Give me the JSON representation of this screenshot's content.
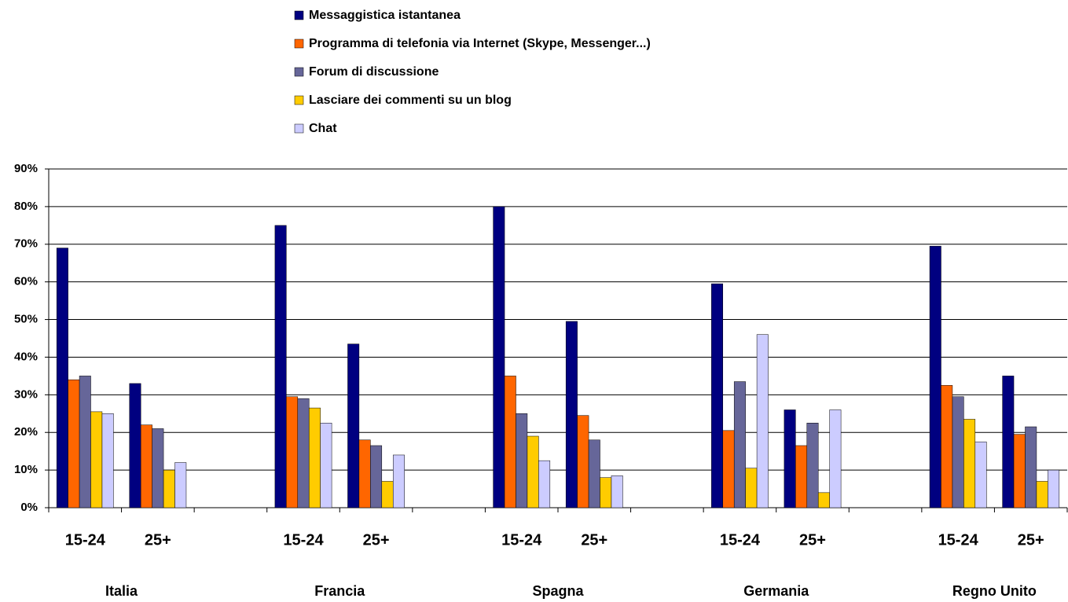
{
  "chart_data": {
    "type": "bar",
    "categories": [
      "15-24",
      "25+",
      null,
      "15-24",
      "25+",
      null,
      "15-24",
      "25+",
      null,
      "15-24",
      "25+",
      null,
      "15-24",
      "25+"
    ],
    "group_labels": [
      "Italia",
      "Francia",
      "Spagna",
      "Germania",
      "Regno Unito"
    ],
    "series": [
      {
        "name": "Messaggistica istantanea",
        "color": "#000080",
        "values": [
          69,
          33,
          null,
          75,
          43.5,
          null,
          80,
          49.5,
          null,
          59.5,
          26,
          null,
          69.5,
          35
        ]
      },
      {
        "name": "Programma di telefonia via Internet (Skype, Messenger...)",
        "color": "#ff6600",
        "values": [
          34,
          22,
          null,
          29.5,
          18,
          null,
          35,
          24.5,
          null,
          20.5,
          16.5,
          null,
          32.5,
          19.5
        ]
      },
      {
        "name": "Forum di discussione",
        "color": "#666699",
        "values": [
          35,
          21,
          null,
          29,
          16.5,
          null,
          25,
          18,
          null,
          33.5,
          22.5,
          null,
          29.5,
          21.5
        ]
      },
      {
        "name": "Lasciare dei commenti su un blog",
        "color": "#ffcc00",
        "values": [
          25.5,
          10,
          null,
          26.5,
          7,
          null,
          19,
          8,
          null,
          10.5,
          4,
          null,
          23.5,
          7
        ]
      },
      {
        "name": "Chat",
        "color": "#ccccff",
        "values": [
          25,
          12,
          null,
          22.5,
          14,
          null,
          12.5,
          8.5,
          null,
          46,
          26,
          null,
          17.5,
          10
        ]
      }
    ],
    "ylim": [
      0,
      90
    ],
    "yticks": [
      {
        "value": 0,
        "label": "0%"
      },
      {
        "value": 10,
        "label": "10%"
      },
      {
        "value": 20,
        "label": "20%"
      },
      {
        "value": 30,
        "label": "30%"
      },
      {
        "value": 40,
        "label": "40%"
      },
      {
        "value": 50,
        "label": "50%"
      },
      {
        "value": 60,
        "label": "60%"
      },
      {
        "value": 70,
        "label": "70%"
      },
      {
        "value": 80,
        "label": "80%"
      },
      {
        "value": 90,
        "label": "90%"
      }
    ],
    "grid": true
  }
}
